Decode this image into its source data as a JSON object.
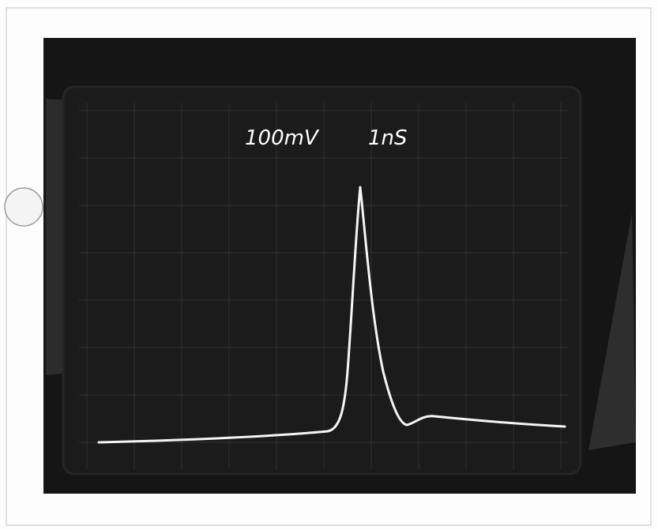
{
  "screen": {
    "volts_per_div": "100mV",
    "time_per_div": "1nS"
  }
}
